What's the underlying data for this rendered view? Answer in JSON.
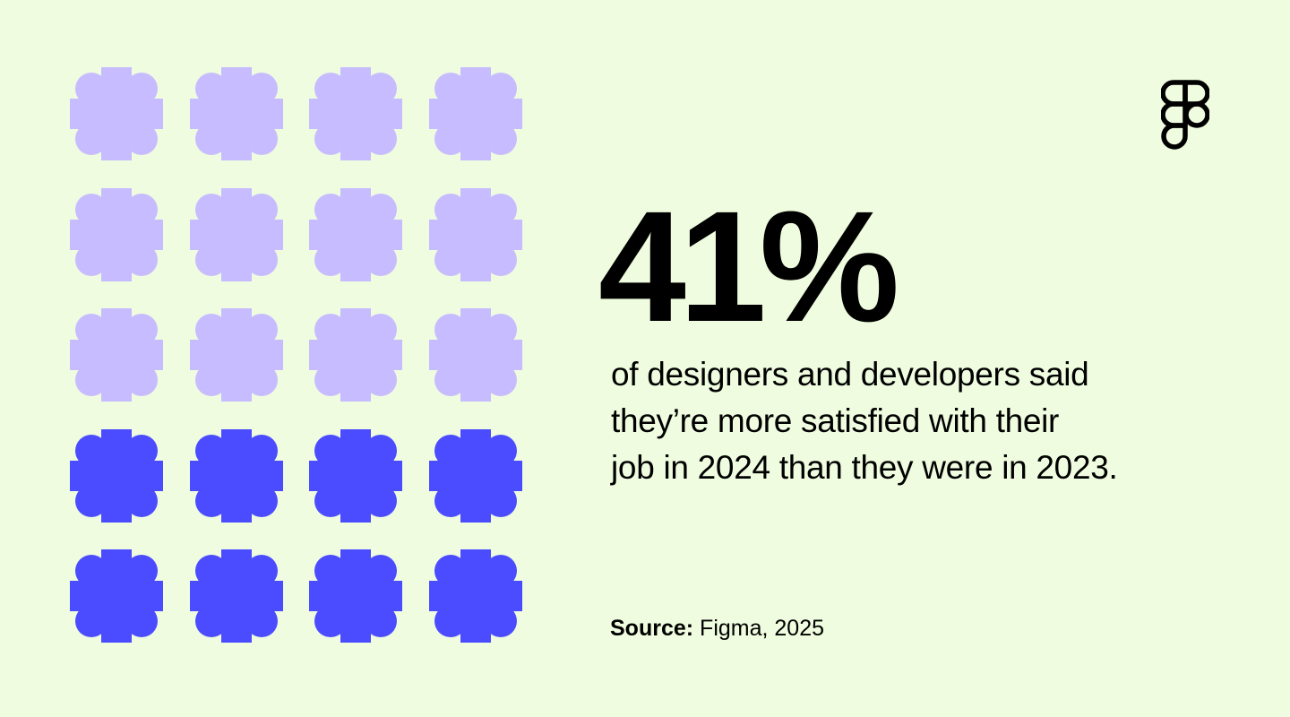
{
  "colors": {
    "background": "#effcdf",
    "highlighted": "#4b4cff",
    "muted": "#c7bcff",
    "text": "#000000"
  },
  "chart_data": {
    "type": "pictograph",
    "icon_name": "flower-person-icon",
    "total_icons": 20,
    "highlighted_icons": 8,
    "rows": 5,
    "columns": 4,
    "value_percent": 41
  },
  "headline": {
    "value": "41%"
  },
  "statement": {
    "lines": [
      "of designers and developers said",
      "they’re more satisfied with their",
      "job in 2024 than they were in 2023."
    ]
  },
  "source": {
    "label": "Source:",
    "text": "Figma, 2025"
  },
  "brand": {
    "icon": "figma-logo-icon"
  }
}
